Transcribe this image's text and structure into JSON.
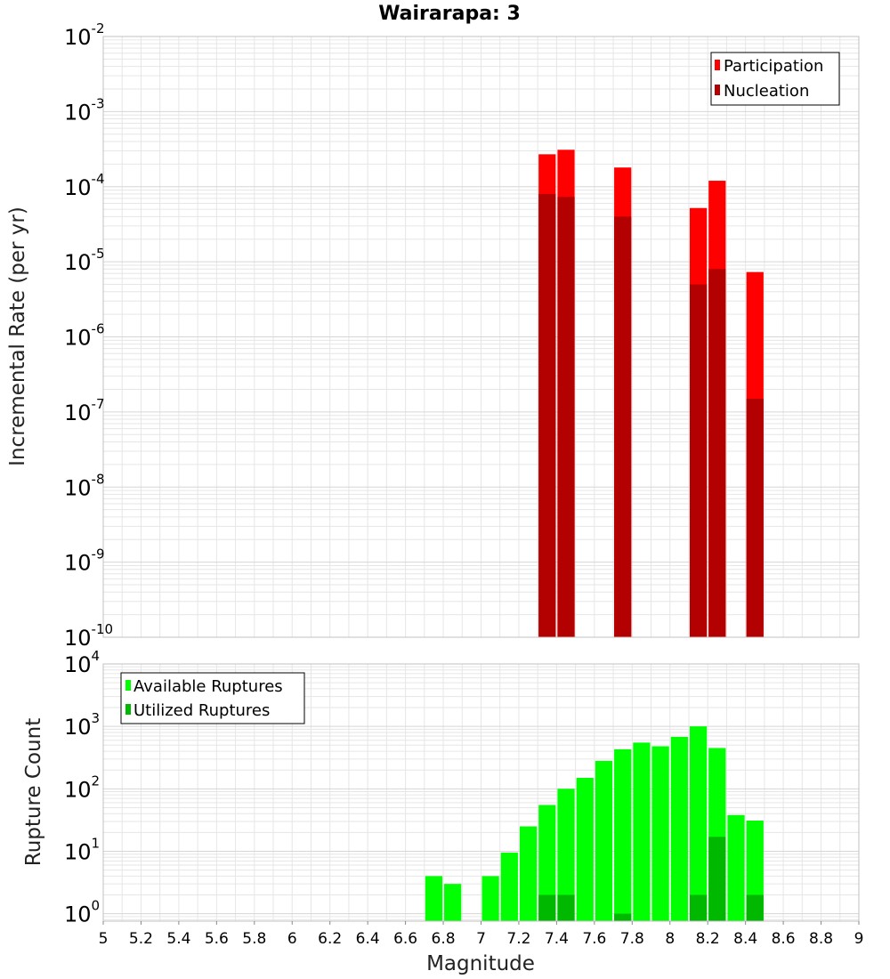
{
  "colors": {
    "participation": "#ff0000",
    "nucleation": "#b30000",
    "available": "#00ff00",
    "utilized": "#00b800",
    "grid": "#e6e6e6",
    "frame": "#c0c0c0"
  },
  "chart_data": [
    {
      "type": "bar",
      "title": "Wairarapa: 3",
      "xlabel": "",
      "ylabel": "Incremental Rate (per yr)",
      "y_scale": "log",
      "xlim": [
        5,
        9
      ],
      "ylim": [
        1e-10,
        0.01
      ],
      "y_ticks": [
        {
          "base": "10",
          "exp": "-10",
          "value": 1e-10
        },
        {
          "base": "10",
          "exp": "-9",
          "value": 1e-09
        },
        {
          "base": "10",
          "exp": "-8",
          "value": 1e-08
        },
        {
          "base": "10",
          "exp": "-7",
          "value": 1e-07
        },
        {
          "base": "10",
          "exp": "-6",
          "value": 1e-06
        },
        {
          "base": "10",
          "exp": "-5",
          "value": 1e-05
        },
        {
          "base": "10",
          "exp": "-4",
          "value": 0.0001
        },
        {
          "base": "10",
          "exp": "-3",
          "value": 0.001
        },
        {
          "base": "10",
          "exp": "-2",
          "value": 0.01
        }
      ],
      "legend": {
        "position": "top-right",
        "entries": [
          "Participation",
          "Nucleation"
        ]
      },
      "grid": true,
      "bar_width": 0.1,
      "series": [
        {
          "name": "Participation",
          "x": [
            7.35,
            7.45,
            7.75,
            8.15,
            8.25,
            8.45
          ],
          "values": [
            0.00027,
            0.00031,
            0.00018,
            5.2e-05,
            0.00012,
            7.3e-06
          ]
        },
        {
          "name": "Nucleation",
          "x": [
            7.35,
            7.45,
            7.75,
            8.15,
            8.25,
            8.45
          ],
          "values": [
            8e-05,
            7.3e-05,
            4e-05,
            5e-06,
            8e-06,
            1.5e-07
          ]
        }
      ]
    },
    {
      "type": "bar",
      "title": "",
      "xlabel": "Magnitude",
      "ylabel": "Rupture Count",
      "y_scale": "log",
      "xlim": [
        5,
        9
      ],
      "ylim": [
        0.76,
        10000
      ],
      "x_ticks": [
        "5",
        "5.2",
        "5.4",
        "5.6",
        "5.8",
        "6",
        "6.2",
        "6.4",
        "6.6",
        "6.8",
        "7",
        "7.2",
        "7.4",
        "7.6",
        "7.8",
        "8",
        "8.2",
        "8.4",
        "8.6",
        "8.8",
        "9"
      ],
      "y_ticks": [
        {
          "base": "10",
          "exp": "0",
          "value": 1
        },
        {
          "base": "10",
          "exp": "1",
          "value": 10
        },
        {
          "base": "10",
          "exp": "2",
          "value": 100
        },
        {
          "base": "10",
          "exp": "3",
          "value": 1000
        },
        {
          "base": "10",
          "exp": "4",
          "value": 10000
        }
      ],
      "legend": {
        "position": "top-left",
        "entries": [
          "Available Ruptures",
          "Utilized Ruptures"
        ]
      },
      "grid": true,
      "bar_width": 0.1,
      "series": [
        {
          "name": "Available Ruptures",
          "x": [
            6.75,
            6.85,
            7.05,
            7.15,
            7.25,
            7.35,
            7.45,
            7.55,
            7.65,
            7.75,
            7.85,
            7.95,
            8.05,
            8.15,
            8.25,
            8.35,
            8.45
          ],
          "values": [
            4,
            3,
            4,
            9.5,
            25,
            55,
            100,
            150,
            280,
            430,
            550,
            480,
            680,
            1000,
            450,
            38,
            31
          ]
        },
        {
          "name": "Utilized Ruptures",
          "x": [
            7.35,
            7.45,
            7.75,
            8.15,
            8.25,
            8.45
          ],
          "values": [
            2,
            2,
            1,
            2,
            17,
            2
          ]
        }
      ]
    }
  ]
}
